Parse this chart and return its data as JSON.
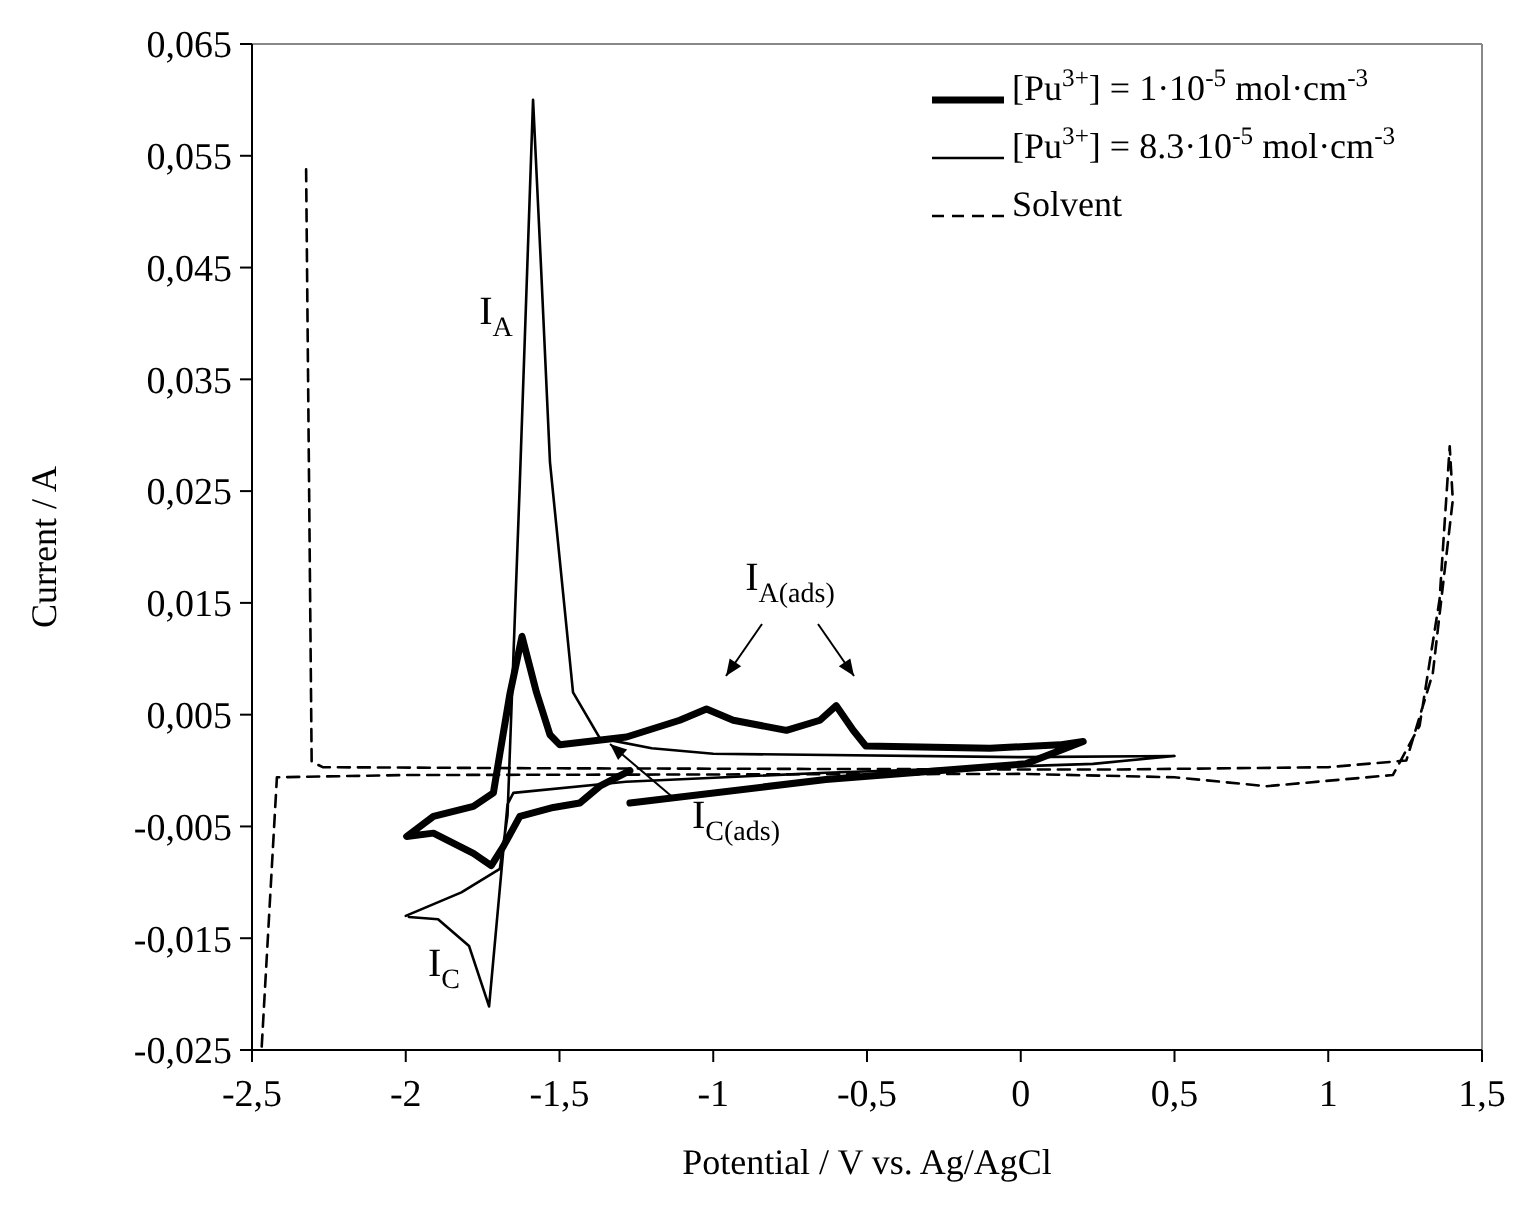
{
  "chart_data": {
    "type": "line",
    "xlabel": "Potential  /  V vs. Ag/AgCl",
    "ylabel": "Current  /  A",
    "xlim": [
      -2.5,
      1.5
    ],
    "xticks": [
      {
        "value": -2.5,
        "label": "-2,5"
      },
      -2,
      {
        "value": -1.5,
        "label": "-1,5"
      },
      -1,
      {
        "value": -0.5,
        "label": "-0,5"
      },
      0,
      {
        "value": 0.5,
        "label": "0,5"
      },
      1,
      {
        "value": 1.5,
        "label": "1,5"
      }
    ],
    "ylim": [
      -0.025,
      0.065
    ],
    "yticks": [
      {
        "value": -0.025,
        "label": "-0,025"
      },
      {
        "value": -0.015,
        "label": "-0,015"
      },
      {
        "value": -0.005,
        "label": "-0,005"
      },
      {
        "value": 0.005,
        "label": "0,005"
      },
      {
        "value": 0.015,
        "label": "0,015"
      },
      {
        "value": 0.025,
        "label": "0,025"
      },
      {
        "value": 0.035,
        "label": "0,035"
      },
      {
        "value": 0.045,
        "label": "0,045"
      },
      {
        "value": 0.055,
        "label": "0,055"
      },
      {
        "value": 0.065,
        "label": "0,065"
      }
    ],
    "grid": false,
    "legend": "top right",
    "marker": "none",
    "series": [
      {
        "name": "[Pu$^{3+}$] = 1·10$^{-5}$ mol·cm$^{-3}$",
        "color": "#000000",
        "line_style": "solid",
        "x": [
          -1.271,
          -0.634,
          0.016,
          0.203,
          0.127,
          -0.1,
          -0.504,
          -0.545,
          -0.6,
          -0.653,
          -0.762,
          -0.935,
          -1.022,
          -1.109,
          -1.282,
          -1.499,
          -1.531,
          -1.575,
          -1.622,
          -1.661,
          -1.694,
          -1.715,
          -1.78,
          -1.91,
          -1.997,
          -1.91,
          -1.78,
          -1.722,
          -1.683,
          -1.629,
          -1.52,
          -1.434,
          -1.369,
          -1.271
        ],
        "values": [
          -0.0029,
          -0.0008,
          0.0006,
          0.0026,
          0.0023,
          0.002,
          0.0022,
          0.0036,
          0.0058,
          0.0045,
          0.0036,
          0.0045,
          0.0055,
          0.0045,
          0.003,
          0.0023,
          0.0032,
          0.007,
          0.012,
          0.0069,
          0.0015,
          -0.002,
          -0.0032,
          -0.0041,
          -0.0059,
          -0.0056,
          -0.0074,
          -0.0085,
          -0.0068,
          -0.0041,
          -0.0033,
          -0.0029,
          -0.0014,
          0
        ]
      },
      {
        "name": "[Pu$^{3+}$] = 8.3·10$^{-5}$ mol·cm$^{-3}$",
        "color": "#000000",
        "line_style": "solid",
        "x": [
          -2.0,
          -1.819,
          -1.694,
          -1.669,
          -1.63,
          -1.586,
          -1.56,
          -1.531,
          -1.456,
          -1.369,
          -1.2,
          -1.0,
          0.0,
          0.5,
          0.235,
          -0.634,
          -1.284,
          -1.65,
          -1.669,
          -1.729,
          -1.794,
          -1.895,
          -1.99
        ],
        "values": [
          -0.013,
          -0.0109,
          -0.0088,
          -0.004,
          0.025,
          0.06,
          0.045,
          0.0276,
          0.007,
          0.0029,
          0.002,
          0.0015,
          0.0012,
          0.0013,
          0.0006,
          -0.0002,
          -0.001,
          -0.002,
          -0.003,
          -0.0211,
          -0.0157,
          -0.0133,
          -0.0131
        ]
      },
      {
        "name": "Solvent",
        "color": "#000000",
        "line_style": "dashed",
        "x": [
          -2.324,
          -2.306,
          -2.27,
          -1.5,
          0.0,
          0.322,
          1.0,
          1.254,
          1.34,
          1.405,
          1.395,
          1.362,
          1.297,
          1.21,
          0.8,
          0.5,
          0.0,
          -2.0,
          -2.419,
          -2.469
        ],
        "values": [
          0.0538,
          0.0008,
          0.0003,
          0.0002,
          0.0001,
          0.0001,
          0.0003,
          0.0009,
          0.0087,
          0.0242,
          0.029,
          0.0153,
          0.004,
          -0.0004,
          -0.0014,
          -0.0006,
          -0.0003,
          -0.0004,
          -0.0006,
          -0.025
        ]
      }
    ],
    "annotations": [
      "I$_{A}$",
      "I$_{C}$",
      "I$_{A(ads)}$",
      "I$_{C(ads)}$"
    ]
  }
}
